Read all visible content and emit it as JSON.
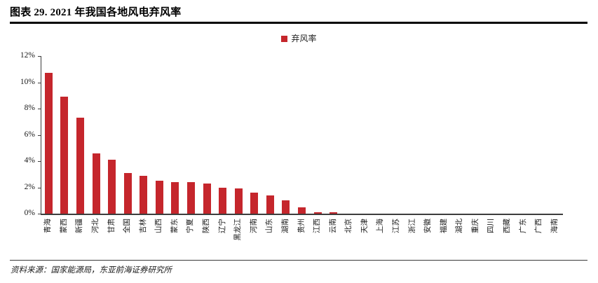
{
  "header": {
    "title": "图表 29. 2021 年我国各地风电弃风率"
  },
  "legend": {
    "label": "弃风率"
  },
  "footer": {
    "source": "资料来源：国家能源局，东亚前海证券研究所"
  },
  "colors": {
    "bar": "#C5262C",
    "axis": "#3d3d3d",
    "title_rule": "#000000"
  },
  "chart_data": {
    "type": "bar",
    "title": "2021 年我国各地风电弃风率",
    "legend": [
      "弃风率"
    ],
    "legend_position": "top-center",
    "grid": false,
    "xlabel": "",
    "ylabel": "",
    "ylim": [
      0,
      12
    ],
    "ytick_step": 2,
    "ytick_labels": [
      "0%",
      "2%",
      "4%",
      "6%",
      "8%",
      "10%",
      "12%"
    ],
    "categories": [
      "青海",
      "蒙西",
      "新疆",
      "河北",
      "甘肃",
      "全国",
      "吉林",
      "山西",
      "蒙东",
      "宁夏",
      "陕西",
      "辽宁",
      "黑龙江",
      "河南",
      "山东",
      "湖南",
      "贵州",
      "江西",
      "云南",
      "北京",
      "天津",
      "上海",
      "江苏",
      "浙江",
      "安徽",
      "福建",
      "湖北",
      "重庆",
      "四川",
      "西藏",
      "广东",
      "广西",
      "海南"
    ],
    "values": [
      10.7,
      8.9,
      7.3,
      4.6,
      4.1,
      3.1,
      2.9,
      2.5,
      2.4,
      2.4,
      2.3,
      2.0,
      1.9,
      1.6,
      1.4,
      1.0,
      0.5,
      0.1,
      0.1,
      0,
      0,
      0,
      0,
      0,
      0,
      0,
      0,
      0,
      0,
      0,
      0,
      0,
      0
    ]
  }
}
